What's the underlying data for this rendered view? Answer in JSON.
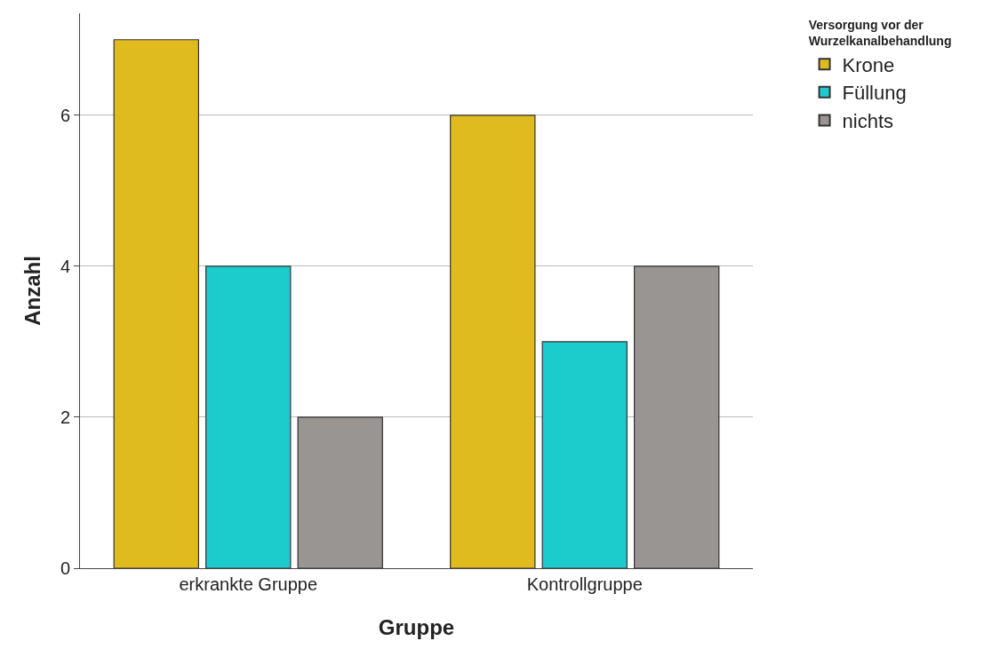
{
  "chart_data": {
    "type": "bar",
    "xlabel": "Gruppe",
    "ylabel": "Anzahl",
    "legend_title": "Versorgung vor der Wurzelkanalbehandlung",
    "categories": [
      "erkrankte Gruppe",
      "Kontrollgruppe"
    ],
    "series": [
      {
        "name": "Krone",
        "color": "#e0bb1f",
        "values": [
          7,
          6
        ]
      },
      {
        "name": "Füllung",
        "color": "#1ccbcb",
        "values": [
          4,
          3
        ]
      },
      {
        "name": "nichts",
        "color": "#999593",
        "values": [
          2,
          4
        ]
      }
    ],
    "ylim": [
      0,
      7.35
    ],
    "yticks": [
      0,
      2,
      4,
      6
    ],
    "grid": "y",
    "legend": "top right"
  }
}
